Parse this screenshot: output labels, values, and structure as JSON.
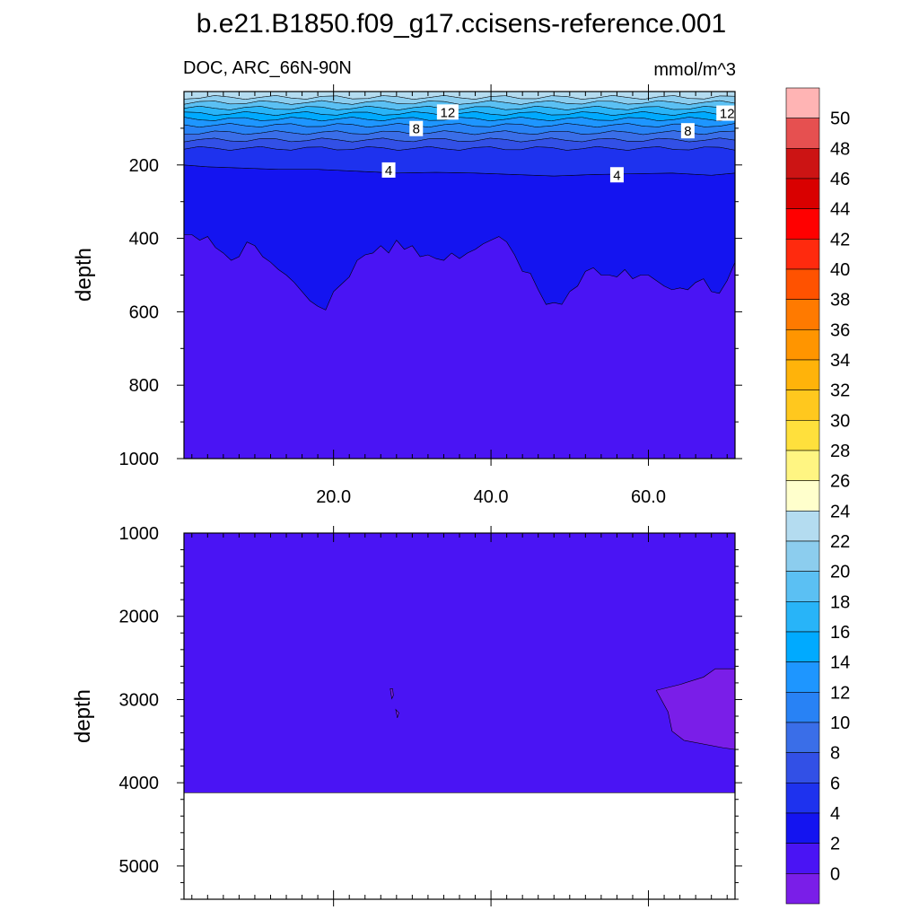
{
  "chart_data": {
    "type": "contour",
    "title": "b.e21.B1850.f09_g17.ccisens-reference.001",
    "variable_label": "DOC, ARC_66N-90N",
    "units": "mmol/m^3",
    "ylabel": "depth",
    "xlim": [
      1,
      71
    ],
    "x_ticks": [
      20,
      40,
      60
    ],
    "x_tick_labels": [
      "20.0",
      "40.0",
      "60.0"
    ],
    "panels": [
      {
        "id": "upper",
        "ylim": [
          0,
          1000
        ],
        "y_inverted": true,
        "y_ticks": [
          200,
          400,
          600,
          800,
          1000
        ],
        "y_tick_labels": [
          "200",
          "400",
          "600",
          "800",
          "1000"
        ],
        "contour_labels": [
          {
            "text": "12",
            "x": 34.5,
            "depth": 57
          },
          {
            "text": "12",
            "x": 70,
            "depth": 60
          },
          {
            "text": "8",
            "x": 30.5,
            "depth": 102
          },
          {
            "text": "8",
            "x": 65,
            "depth": 108
          },
          {
            "text": "4",
            "x": 27,
            "depth": 215
          },
          {
            "text": "4",
            "x": 56,
            "depth": 228
          }
        ],
        "surface_band_depths": [
          0,
          16,
          30,
          45,
          60,
          75,
          92,
          112,
          132,
          155,
          180
        ],
        "line_4_depth": {
          "x": [
            1,
            4,
            8,
            13,
            18,
            24,
            28,
            33,
            38,
            43,
            48,
            53,
            58,
            63,
            68,
            71
          ],
          "depth": [
            200,
            205,
            208,
            212,
            212,
            218,
            222,
            220,
            222,
            226,
            230,
            226,
            224,
            222,
            228,
            222
          ]
        },
        "line_2_depth": {
          "x": [
            1,
            2,
            3,
            4,
            5,
            6,
            7,
            8,
            9,
            10,
            11,
            12,
            13,
            14,
            15,
            16,
            17,
            18,
            19,
            20,
            21,
            22,
            23,
            24,
            25,
            26,
            27,
            28,
            29,
            30,
            31,
            32,
            33,
            34,
            35,
            36,
            37,
            38,
            39,
            40,
            41,
            42,
            43,
            44,
            45,
            46,
            47,
            48,
            49,
            50,
            51,
            52,
            53,
            54,
            55,
            56,
            57,
            58,
            59,
            60,
            61,
            62,
            63,
            64,
            65,
            66,
            67,
            68,
            69,
            70,
            71
          ],
          "depth": [
            390,
            390,
            405,
            395,
            425,
            440,
            460,
            450,
            410,
            420,
            450,
            465,
            485,
            500,
            520,
            545,
            570,
            585,
            595,
            545,
            525,
            505,
            460,
            445,
            440,
            420,
            440,
            405,
            430,
            420,
            450,
            445,
            455,
            460,
            440,
            455,
            440,
            430,
            415,
            405,
            395,
            410,
            445,
            490,
            495,
            540,
            580,
            575,
            580,
            545,
            530,
            490,
            480,
            500,
            500,
            505,
            485,
            510,
            500,
            500,
            515,
            530,
            540,
            535,
            540,
            520,
            510,
            545,
            550,
            515,
            465
          ]
        }
      },
      {
        "id": "lower",
        "ylim": [
          1000,
          5400
        ],
        "y_inverted": true,
        "y_ticks": [
          1000,
          2000,
          3000,
          4000,
          5000
        ],
        "y_tick_labels": [
          "1000",
          "2000",
          "3000",
          "4000",
          "5000"
        ],
        "bottom_depth": 4120,
        "below_zero_patches": [
          {
            "x": [
              61,
              64,
              67,
              68.5,
              71,
              71,
              69.5,
              64.5,
              63,
              62.5,
              61
            ],
            "depth": [
              2890,
              2820,
              2730,
              2630,
              2630,
              3600,
              3580,
              3490,
              3380,
              3150,
              2890
            ]
          },
          {
            "x": [
              27.2,
              27.5,
              27.6,
              27.4,
              27.2
            ],
            "depth": [
              2870,
              2870,
              2950,
              2990,
              2870
            ]
          },
          {
            "x": [
              27.9,
              28.3,
              28.1,
              27.9
            ],
            "depth": [
              3120,
              3160,
              3220,
              3120
            ]
          }
        ]
      }
    ],
    "colorbar": {
      "labels": [
        "50",
        "48",
        "46",
        "44",
        "42",
        "40",
        "38",
        "36",
        "34",
        "32",
        "30",
        "28",
        "26",
        "24",
        "22",
        "20",
        "18",
        "16",
        "14",
        "12",
        "10",
        "8",
        "6",
        "4",
        "2",
        "0"
      ],
      "level_colors": [
        "#ffb4b4",
        "#e65050",
        "#cc1414",
        "#d90000",
        "#ff0000",
        "#ff2a0e",
        "#ff5200",
        "#ff7a00",
        "#ff9500",
        "#ffb30a",
        "#ffc81e",
        "#ffe03c",
        "#fff582",
        "#ffffcc",
        "#b4dcf0",
        "#8ccdee",
        "#5bc0f3",
        "#28b4f8",
        "#00aaff",
        "#1e96ff",
        "#2882f5",
        "#3a6ee8",
        "#3250e6",
        "#1e32ee",
        "#1414f0",
        "#4a14f4",
        "#7a1ee8"
      ]
    }
  }
}
